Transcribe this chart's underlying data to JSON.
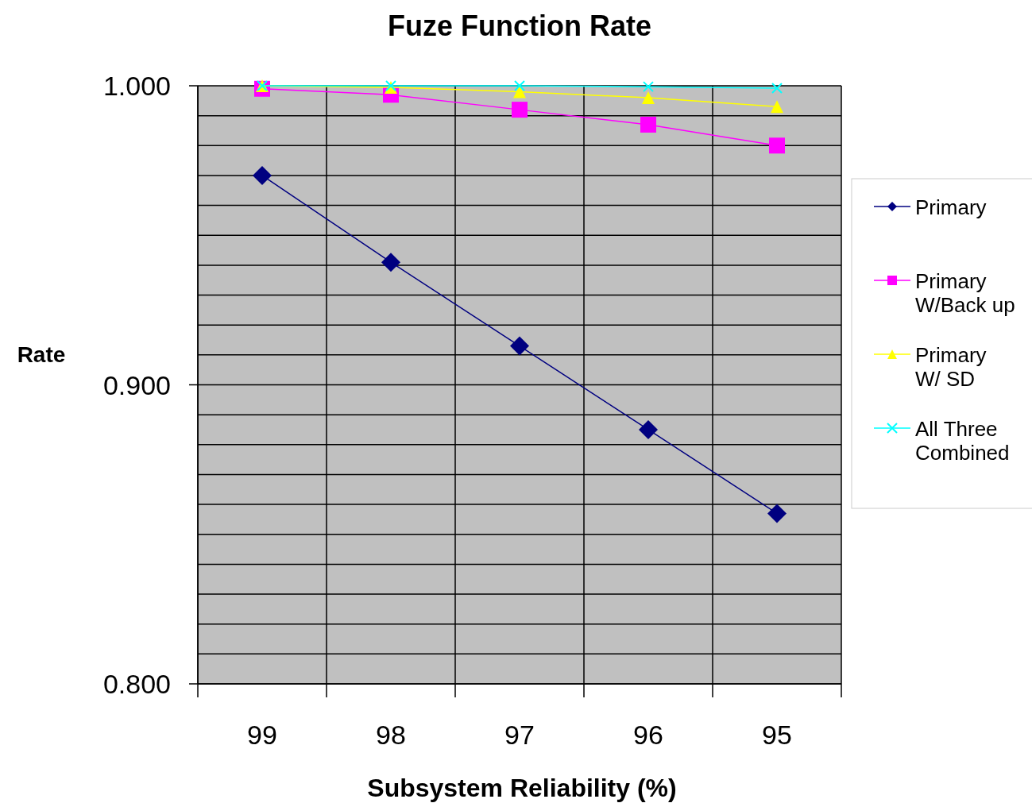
{
  "chart_data": {
    "type": "line",
    "title": "Fuze Function Rate",
    "xlabel": "Subsystem Reliability (%)",
    "ylabel": "Rate",
    "categories": [
      "99",
      "98",
      "97",
      "96",
      "95"
    ],
    "series": [
      {
        "name": "Primary",
        "color": "#000080",
        "marker": "diamond",
        "values": [
          0.97,
          0.941,
          0.913,
          0.885,
          0.857
        ]
      },
      {
        "name": "Primary W/Back up",
        "color": "#ff00ff",
        "marker": "square",
        "values": [
          0.999,
          0.997,
          0.992,
          0.987,
          0.98
        ]
      },
      {
        "name": "Primary W/ SD",
        "color": "#ffff00",
        "marker": "triangle",
        "values": [
          1.0,
          0.9995,
          0.998,
          0.996,
          0.993
        ]
      },
      {
        "name": "All Three Combined",
        "color": "#00ffff",
        "marker": "cross",
        "values": [
          1.0,
          1.0,
          1.0,
          0.9997,
          0.9992
        ]
      }
    ],
    "ylim": [
      0.8,
      1.0
    ],
    "yticks": [
      {
        "value": 0.8,
        "label": "0.800"
      },
      {
        "value": 0.81,
        "label": null
      },
      {
        "value": 0.82,
        "label": null
      },
      {
        "value": 0.83,
        "label": null
      },
      {
        "value": 0.84,
        "label": null
      },
      {
        "value": 0.85,
        "label": null
      },
      {
        "value": 0.86,
        "label": null
      },
      {
        "value": 0.87,
        "label": null
      },
      {
        "value": 0.88,
        "label": null
      },
      {
        "value": 0.89,
        "label": null
      },
      {
        "value": 0.9,
        "label": "0.900"
      },
      {
        "value": 0.91,
        "label": null
      },
      {
        "value": 0.92,
        "label": null
      },
      {
        "value": 0.93,
        "label": null
      },
      {
        "value": 0.94,
        "label": null
      },
      {
        "value": 0.95,
        "label": null
      },
      {
        "value": 0.96,
        "label": null
      },
      {
        "value": 0.97,
        "label": null
      },
      {
        "value": 0.98,
        "label": null
      },
      {
        "value": 0.99,
        "label": null
      },
      {
        "value": 1.0,
        "label": "1.000"
      }
    ],
    "grid": true,
    "legend": "right"
  }
}
